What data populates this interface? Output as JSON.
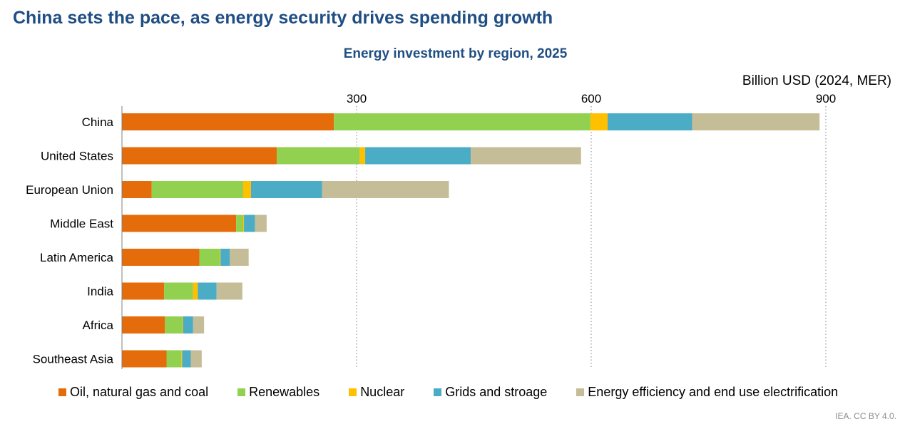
{
  "page": {
    "title": "China sets the pace, as energy security drives spending growth",
    "source": "IEA. CC BY 4.0."
  },
  "chart_data": {
    "type": "bar",
    "orientation": "horizontal",
    "stacked": true,
    "title": "Energy investment by region, 2025",
    "unit_label": "Billion USD (2024, MER)",
    "xlim": [
      0,
      900
    ],
    "xticks": [
      300,
      600,
      900
    ],
    "grid": "vertical dotted",
    "legend_position": "bottom",
    "categories": [
      "China",
      "United States",
      "European Union",
      "Middle East",
      "Latin America",
      "India",
      "Africa",
      "Southeast Asia"
    ],
    "series": [
      {
        "name": "Oil, natural gas and coal",
        "color": "#e46c0a",
        "values": [
          271,
          198,
          38,
          146,
          99,
          54,
          55,
          57
        ]
      },
      {
        "name": "Renewables",
        "color": "#92d050",
        "values": [
          328,
          106,
          117,
          9,
          26,
          37,
          22,
          19
        ]
      },
      {
        "name": "Nuclear",
        "color": "#ffc000",
        "values": [
          22,
          7,
          10,
          1,
          1,
          6,
          1,
          1
        ]
      },
      {
        "name": "Grids and stroage",
        "color": "#4bacc6",
        "values": [
          108,
          135,
          91,
          14,
          12,
          24,
          13,
          11
        ]
      },
      {
        "name": "Energy efficiency and end use electrification",
        "color": "#c4bd97",
        "values": [
          163,
          141,
          162,
          15,
          24,
          33,
          14,
          14
        ]
      }
    ]
  }
}
